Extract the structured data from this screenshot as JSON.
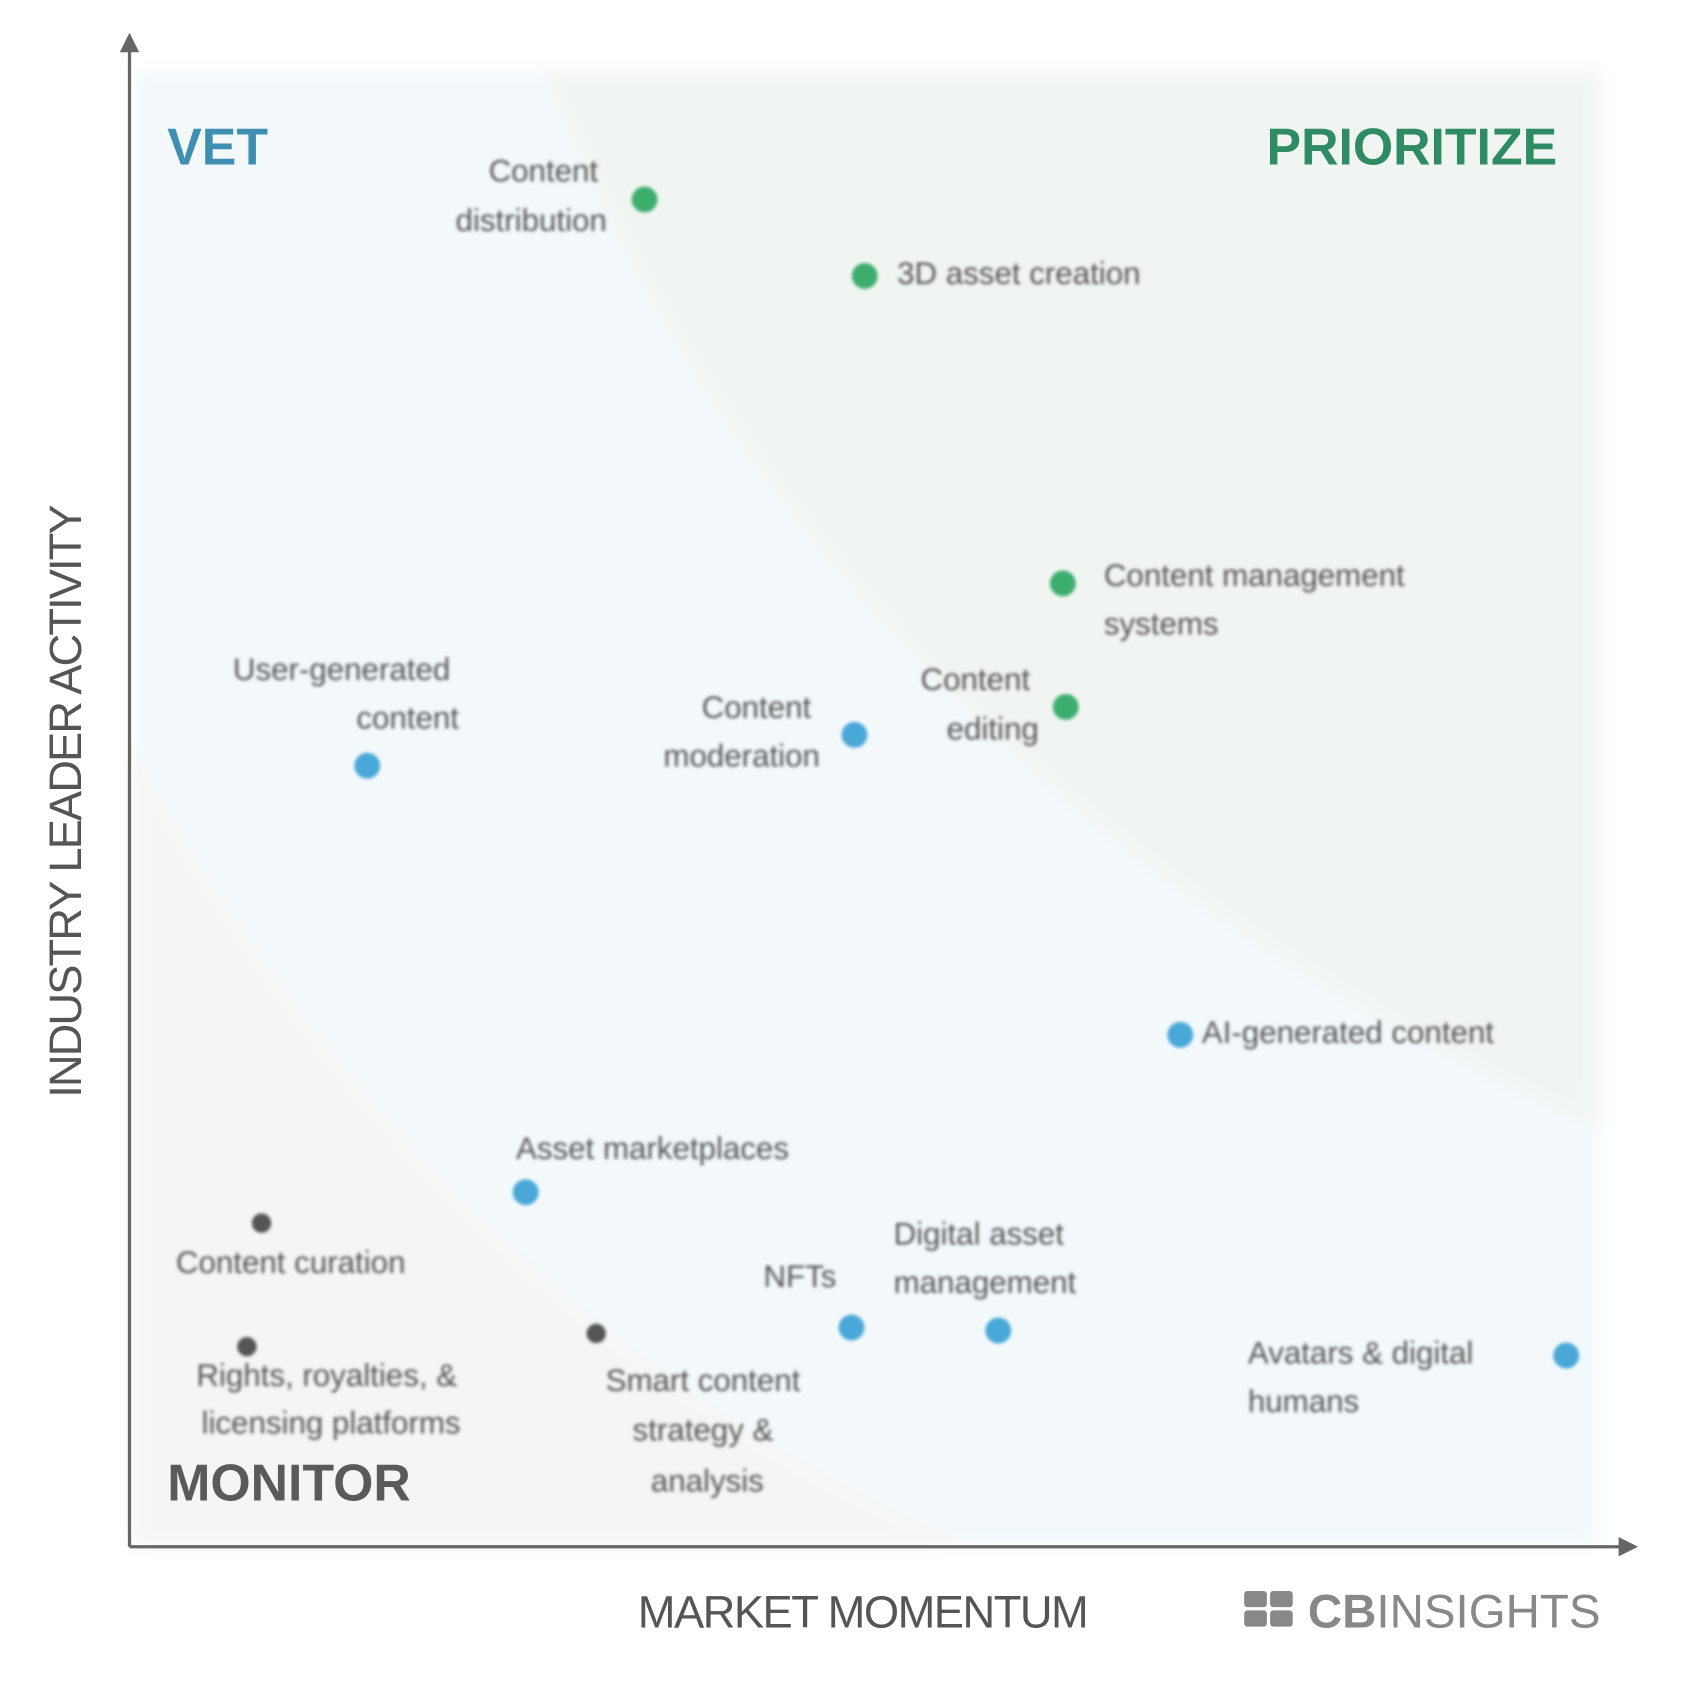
{
  "chart_data": {
    "type": "scatter",
    "x_label": "MARKET MOMENTUM",
    "y_label": "INDUSTRY LEADER ACTIVITY",
    "xlim": [
      0,
      100
    ],
    "ylim": [
      0,
      100
    ],
    "quadrants": [
      {
        "name": "VET",
        "color": "#3f8fb3"
      },
      {
        "name": "PRIORITIZE",
        "color": "#2e8b63"
      },
      {
        "name": "MONITOR",
        "color": "#5a5a5a"
      }
    ],
    "points": [
      {
        "label": "Content distribution",
        "x": 35.1,
        "y": 91.6,
        "color": "#3cad6e"
      },
      {
        "label": "3D asset creation",
        "x": 50.1,
        "y": 86.4,
        "color": "#3cad6e"
      },
      {
        "label": "Content management systems",
        "x": 63.6,
        "y": 65.5,
        "color": "#3cad6e"
      },
      {
        "label": "Content editing",
        "x": 63.8,
        "y": 57.1,
        "color": "#3cad6e"
      },
      {
        "label": "Content moderation",
        "x": 49.4,
        "y": 55.2,
        "color": "#4aa8d8"
      },
      {
        "label": "User-generated content",
        "x": 16.2,
        "y": 53.1,
        "color": "#4aa8d8"
      },
      {
        "label": "AI-generated content",
        "x": 71.6,
        "y": 34.8,
        "color": "#4aa8d8"
      },
      {
        "label": "Asset marketplaces",
        "x": 27.0,
        "y": 24.1,
        "color": "#4aa8d8"
      },
      {
        "label": "Content curation",
        "x": 9.0,
        "y": 22.0,
        "color": "#555555"
      },
      {
        "label": "Rights, royalties, & licensing platforms",
        "x": 8.0,
        "y": 13.6,
        "color": "#555555"
      },
      {
        "label": "Smart content strategy & analysis",
        "x": 31.8,
        "y": 14.5,
        "color": "#555555"
      },
      {
        "label": "NFTs",
        "x": 49.2,
        "y": 14.9,
        "color": "#4aa8d8"
      },
      {
        "label": "Digital asset management",
        "x": 59.2,
        "y": 14.7,
        "color": "#4aa8d8"
      },
      {
        "label": "Avatars & digital humans",
        "x": 97.9,
        "y": 13.0,
        "color": "#4aa8d8"
      }
    ],
    "logo": [
      "CB",
      "INSIGHTS"
    ]
  }
}
